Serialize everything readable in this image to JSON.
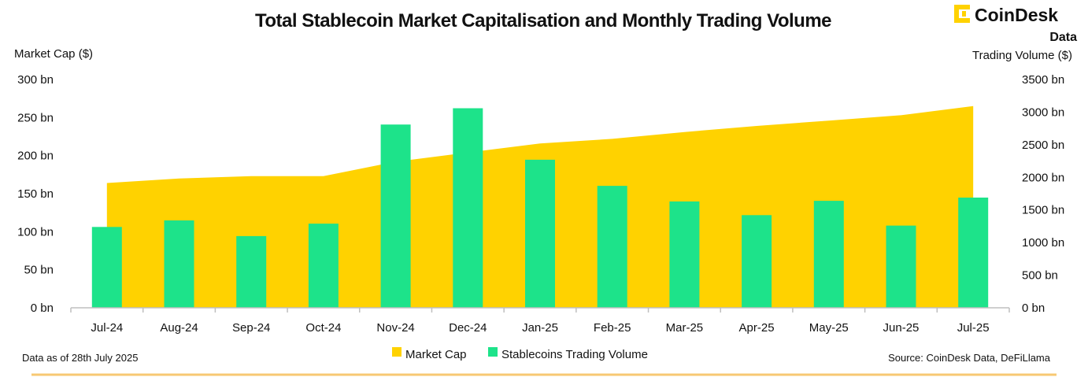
{
  "branding": {
    "name": "CoinDesk",
    "sub": "Data"
  },
  "footer": {
    "as_of": "Data as of 28th July 2025",
    "source": "Source: CoinDesk Data, DeFiLlama"
  },
  "colors": {
    "market_cap": "#FFD200",
    "trading_volume": "#1DE38A",
    "footer_rule": "#F7C873",
    "axis": "#BFBFBF"
  },
  "chart_data": {
    "type": "bar",
    "title": "Total Stablecoin Market Capitalisation and Monthly Trading Volume",
    "categories": [
      "Jul-24",
      "Aug-24",
      "Sep-24",
      "Oct-24",
      "Nov-24",
      "Dec-24",
      "Jan-25",
      "Feb-25",
      "Mar-25",
      "Apr-25",
      "May-25",
      "Jun-25",
      "Jul-25"
    ],
    "left_axis": {
      "label": "Market Cap ($)",
      "ylim": [
        0,
        300
      ],
      "ticks": [
        "0 bn",
        "50 bn",
        "100 bn",
        "150 bn",
        "200 bn",
        "250 bn",
        "300 bn"
      ]
    },
    "right_axis": {
      "label": "Trading Volume ($)",
      "ylim": [
        0,
        3500
      ],
      "ticks": [
        "0 bn",
        "500 bn",
        "1000 bn",
        "1500 bn",
        "2000 bn",
        "2500 bn",
        "3000 bn",
        "3500 bn"
      ]
    },
    "series": [
      {
        "name": "Market Cap",
        "type": "area",
        "axis": "left",
        "values": [
          164,
          170,
          173,
          173,
          192,
          204,
          216,
          222,
          231,
          239,
          246,
          253,
          265
        ]
      },
      {
        "name": "Stablecoins Trading Volume",
        "type": "bar",
        "axis": "right",
        "values": [
          1240,
          1340,
          1100,
          1290,
          2810,
          3060,
          2270,
          1870,
          1630,
          1420,
          1640,
          1260,
          1690
        ]
      }
    ],
    "legend_position": "bottom",
    "grid": false
  }
}
